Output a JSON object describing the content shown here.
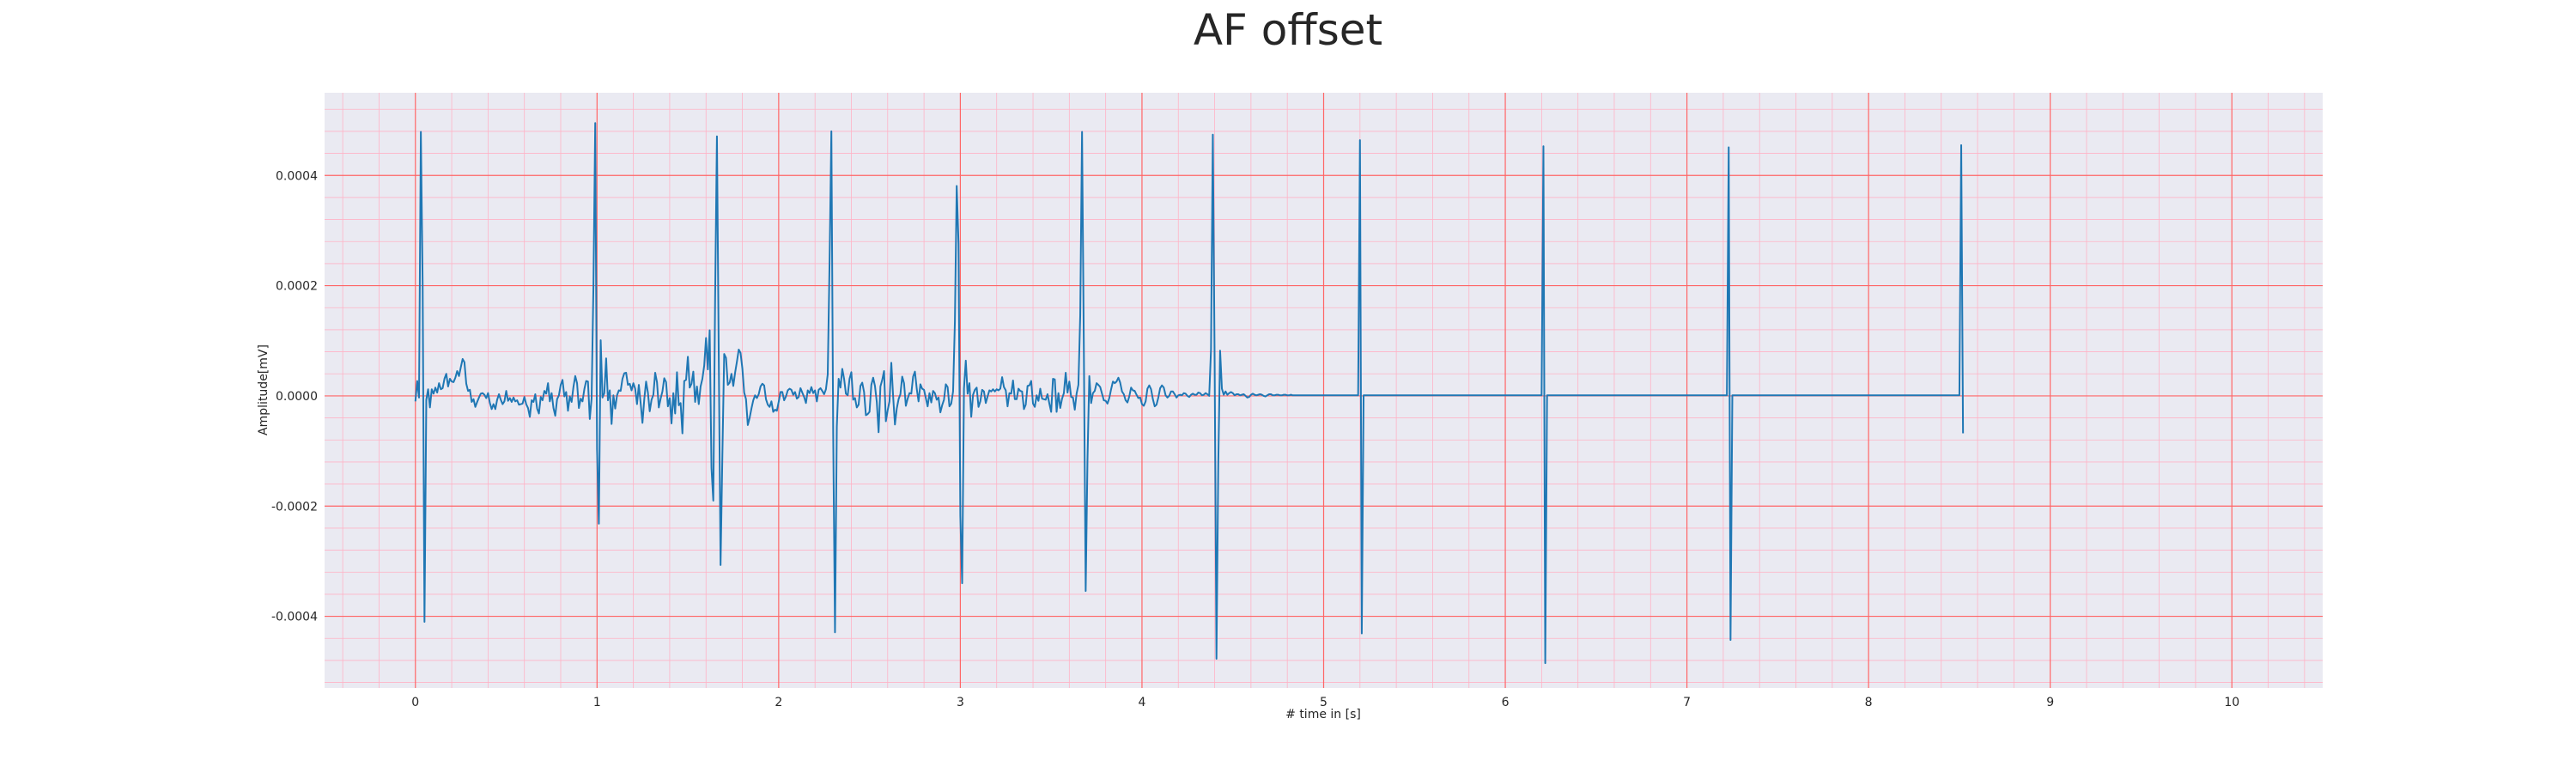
{
  "chart_data": {
    "type": "line",
    "title": "AF offset",
    "xlabel": "# time in [s]",
    "ylabel": "Amplitude[mV]",
    "xlim": [
      -0.5,
      10.5
    ],
    "ylim": [
      -0.00053,
      0.00055
    ],
    "xticks": [
      0,
      1,
      2,
      3,
      4,
      5,
      6,
      7,
      8,
      9,
      10
    ],
    "xtick_labels": [
      "0",
      "1",
      "2",
      "3",
      "4",
      "5",
      "6",
      "7",
      "8",
      "9",
      "10"
    ],
    "yticks": [
      -0.0004,
      -0.0002,
      0.0,
      0.0002,
      0.0004
    ],
    "ytick_labels": [
      "-0.0004",
      "-0.0002",
      "0.0000",
      "0.0002",
      "0.0004"
    ],
    "grid": "on",
    "colors": {
      "line": "#1f77b4",
      "plot_background": "#eaeaf2",
      "major_grid": "#ff6666",
      "minor_grid": "#ffb3c6",
      "text": "#262626"
    },
    "series": [
      {
        "sample_rate_hz": 100,
        "x_start": 0.0,
        "values": [
          -1e-05,
          2.7e-05,
          -3e-06,
          0.000479,
          0.000201,
          -0.00041,
          -7e-06,
          1.2e-05,
          -2.1e-05,
          1.2e-05,
          4e-06,
          1.5e-05,
          6e-06,
          2.3e-05,
          1.2e-05,
          1.4e-05,
          3.1e-05,
          4e-05,
          1.7e-05,
          3.1e-05,
          2.6e-05,
          2.5e-05,
          3.3e-05,
          4.5e-05,
          3.6e-05,
          5.2e-05,
          6.7e-05,
          6.1e-05,
          2.2e-05,
          9e-06,
          1.1e-05,
          -1.1e-05,
          -6e-06,
          -2e-05,
          -1.1e-05,
          -3e-06,
          4e-06,
          5e-06,
          2e-06,
          -4e-06,
          5e-06,
          -1.3e-05,
          -2.4e-05,
          -1.5e-05,
          -2.4e-05,
          -7e-06,
          3e-06,
          -7e-06,
          -1.5e-05,
          -1e-05,
          9e-06,
          -9e-06,
          -4e-06,
          -1.1e-05,
          -3e-06,
          -1e-05,
          -8e-06,
          -1.6e-05,
          -1.5e-05,
          -1.4e-05,
          -2e-06,
          -1.5e-05,
          -2.2e-05,
          -3.8e-05,
          -8e-06,
          -1.1e-05,
          3e-06,
          -2.3e-05,
          -3.2e-05,
          -2e-06,
          -8e-06,
          9e-06,
          4e-06,
          2.3e-05,
          -1e-05,
          5e-06,
          -2.2e-05,
          -3.6e-05,
          -6e-06,
          1e-06,
          2e-05,
          2.9e-05,
          -1e-06,
          7e-06,
          -2.7e-05,
          -1e-06,
          -1.1e-05,
          1.6e-05,
          3.6e-05,
          2.3e-05,
          -2.2e-05,
          -5e-06,
          -1e-05,
          1.2e-05,
          2.7e-05,
          2.6e-05,
          -4.2e-05,
          -5e-06,
          0.000197,
          0.000495,
          -9.7e-05,
          -0.000232,
          0.000101,
          -3e-06,
          5e-06,
          6.8e-05,
          -8e-06,
          1e-05,
          -5.1e-05,
          1e-06,
          -2.3e-05,
          1e-06,
          1e-05,
          9e-06,
          3.1e-05,
          4.1e-05,
          4.2e-05,
          2e-05,
          2.2e-05,
          1e-05,
          2.3e-05,
          1.3e-05,
          -1.5e-05,
          2e-05,
          -1.3e-05,
          -4.9e-05,
          -6e-06,
          2.6e-05,
          6e-06,
          -2.8e-05,
          -7e-06,
          2e-06,
          4.2e-05,
          2.5e-05,
          -2.1e-05,
          -5e-06,
          8e-06,
          3.2e-05,
          2.5e-05,
          -1.9e-05,
          -4e-06,
          -5e-05,
          5e-06,
          -3.2e-05,
          4.3e-05,
          -1.7e-05,
          -1.3e-05,
          -6.8e-05,
          2.7e-05,
          2.9e-05,
          7.1e-05,
          1.5e-05,
          2.2e-05,
          4.4e-05,
          -1.1e-05,
          1.7e-05,
          -1.5e-05,
          1.7e-05,
          3.1e-05,
          5.5e-05,
          0.000105,
          4.8e-05,
          0.000119,
          -0.000131,
          -0.00019,
          0.000177,
          0.000471,
          7.5e-05,
          -0.000307,
          -0.000107,
          7.6e-05,
          6.9e-05,
          2e-05,
          2.4e-05,
          4e-05,
          1.8e-05,
          4.2e-05,
          6.2e-05,
          8.4e-05,
          7.8e-05,
          5e-05,
          6e-06,
          -6e-06,
          -5.3e-05,
          -4e-05,
          -2.3e-05,
          -8e-06,
          1e-06,
          -4e-06,
          3e-06,
          1.7e-05,
          2.2e-05,
          1.9e-05,
          -6e-06,
          -1.6e-05,
          -2e-05,
          -1e-05,
          -2.9e-05,
          -2.5e-05,
          -2.7e-05,
          -1.1e-05,
          7e-06,
          7e-06,
          -8e-06,
          -1e-06,
          1e-05,
          1.3e-05,
          1.1e-05,
          2e-06,
          7e-06,
          -5e-06,
          -2e-06,
          1.4e-05,
          6e-06,
          -2e-06,
          -1.3e-05,
          1e-05,
          5e-06,
          1.6e-05,
          5e-06,
          1e-05,
          -1e-05,
          1.1e-05,
          1.4e-05,
          9e-06,
          3e-06,
          1.2e-05,
          3.9e-05,
          0.000242,
          0.00048,
          -6.8e-05,
          -0.000429,
          -5.6e-05,
          3.1e-05,
          1.5e-05,
          4.9e-05,
          3.1e-05,
          4e-06,
          1e-06,
          3.1e-05,
          4.3e-05,
          -7e-06,
          -4e-06,
          -2.1e-05,
          -1.6e-05,
          1.8e-05,
          2.4e-05,
          7e-06,
          -3.5e-05,
          -3.3e-05,
          -2.9e-05,
          2e-05,
          3.3e-05,
          1.8e-05,
          -1.1e-05,
          -6.6e-05,
          1.7e-05,
          2.9e-05,
          4.5e-05,
          -4.6e-05,
          -2.6e-05,
          -1e-05,
          6e-05,
          -1e-06,
          -5.2e-05,
          -2.3e-05,
          -6e-06,
          3e-06,
          3.5e-05,
          2.3e-05,
          -1.8e-05,
          -5e-06,
          5e-06,
          4e-06,
          3.5e-05,
          4.4e-05,
          1.3e-05,
          -1e-05,
          2.1e-05,
          1.3e-05,
          1.1e-05,
          -4e-06,
          -1.9e-05,
          5e-06,
          -1.2e-05,
          9e-06,
          5e-06,
          -7e-06,
          -3e-06,
          -3e-05,
          -1.7e-05,
          -7e-06,
          2.1e-05,
          1.6e-05,
          -1.9e-05,
          -1.4e-05,
          8e-06,
          0.000134,
          0.000381,
          0.000276,
          -0.000218,
          -0.00034,
          1.3e-05,
          6.4e-05,
          4e-06,
          2.3e-05,
          -3.8e-05,
          2e-06,
          1.1e-05,
          1.5e-05,
          -2e-05,
          -1e-05,
          1.1e-05,
          8e-06,
          -1.3e-05,
          -1e-06,
          1e-05,
          8e-06,
          1.2e-05,
          8e-06,
          1.2e-05,
          1e-05,
          1.3e-05,
          3.4e-05,
          1.6e-05,
          1e-05,
          -1.9e-05,
          5e-06,
          4e-06,
          2.8e-05,
          -6e-06,
          -6e-06,
          1.3e-05,
          9e-06,
          8e-06,
          -2.4e-05,
          -1.6e-05,
          1.8e-05,
          1.9e-05,
          2.7e-05,
          -1.4e-05,
          -2e-05,
          1e-06,
          -9e-06,
          1.3e-05,
          -5e-06,
          -6e-06,
          -7e-06,
          3e-06,
          -1.4e-05,
          -2.9e-05,
          3.1e-05,
          3e-05,
          -2.9e-05,
          5e-06,
          -2.2e-05,
          -5e-06,
          5e-06,
          4.2e-05,
          6e-06,
          2.6e-05,
          -2e-06,
          -3e-06,
          -2.5e-05,
          4e-06,
          2e-05,
          0.000146,
          0.000479,
          8.2e-05,
          -0.000354,
          -0.000115,
          3.6e-05,
          -1.3e-05,
          5e-06,
          9e-06,
          2.3e-05,
          2e-05,
          1.6e-05,
          4e-06,
          -8e-06,
          -9e-06,
          -1.4e-05,
          -4e-06,
          1.2e-05,
          2.6e-05,
          2.3e-05,
          2.6e-05,
          3.3e-05,
          2.4e-05,
          8e-06,
          3e-06,
          -8e-06,
          -1.2e-05,
          -1e-06,
          1.5e-05,
          1e-05,
          9e-06,
          2e-06,
          -4e-06,
          -3e-06,
          -1.5e-05,
          -1.8e-05,
          -1e-05,
          1.3e-05,
          1.9e-05,
          1.2e-05,
          -6e-06,
          -1.9e-05,
          -1.6e-05,
          -3e-06,
          1.4e-05,
          1.9e-05,
          1.5e-05,
          1e-06,
          -3e-06,
          0.0,
          8e-06,
          8e-06,
          3e-06,
          -3e-06,
          1e-06,
          2e-06,
          1e-06,
          5e-06,
          4e-06,
          0.0,
          -2e-06,
          2e-06,
          4e-06,
          2e-06,
          2e-06,
          6e-06,
          5e-06,
          1e-06,
          2e-06,
          5e-06,
          3e-06,
          0.0,
          8.4e-05,
          0.000474,
          6.1e-05,
          -0.000477,
          -0.000125,
          8.2e-05,
          1.3e-05,
          2e-06,
          8e-06,
          2e-06,
          5e-06,
          7e-06,
          5e-06,
          1e-06,
          3e-06,
          3e-06,
          1e-06,
          2e-06,
          3e-06,
          0.0,
          -3e-06,
          -2e-06,
          2e-06,
          4e-06,
          2e-06,
          1e-06,
          2e-06,
          3e-06,
          2e-06,
          0.0,
          -1e-06,
          1e-06,
          3e-06,
          3e-06,
          1e-06,
          1e-06,
          2e-06,
          2e-06,
          1e-06,
          1e-06,
          2e-06,
          2e-06,
          1e-06,
          1e-06,
          2e-06,
          1e-06,
          1e-06,
          1e-06,
          1e-06,
          1e-06,
          1e-06,
          1e-06,
          1e-06,
          1e-06,
          1e-06,
          1e-06,
          1e-06,
          1e-06,
          1e-06,
          1e-06,
          1e-06,
          1e-06,
          1e-06,
          1e-06,
          1e-06,
          1e-06,
          1e-06,
          1e-06,
          1e-06,
          1e-06,
          1e-06,
          1e-06,
          1e-06,
          1e-06,
          1e-06,
          1e-06,
          1e-06,
          1e-06,
          1e-06,
          1e-06,
          1e-06,
          1e-06,
          0.000464,
          -0.000431,
          1e-06,
          1e-06,
          1e-06,
          1e-06,
          1e-06,
          1e-06,
          1e-06,
          1e-06,
          1e-06,
          1e-06,
          1e-06,
          1e-06,
          1e-06,
          1e-06,
          1e-06,
          1e-06,
          1e-06,
          1e-06,
          1e-06,
          1e-06,
          1e-06,
          1e-06,
          1e-06,
          1e-06,
          1e-06,
          1e-06,
          1e-06,
          1e-06,
          1e-06,
          1e-06,
          1e-06,
          1e-06,
          1e-06,
          1e-06,
          1e-06,
          1e-06,
          1e-06,
          1e-06,
          1e-06,
          1e-06,
          1e-06,
          1e-06,
          1e-06,
          1e-06,
          1e-06,
          1e-06,
          1e-06,
          1e-06,
          1e-06,
          1e-06,
          1e-06,
          1e-06,
          1e-06,
          1e-06,
          1e-06,
          1e-06,
          1e-06,
          1e-06,
          1e-06,
          1e-06,
          1e-06,
          1e-06,
          1e-06,
          1e-06,
          1e-06,
          1e-06,
          1e-06,
          1e-06,
          1e-06,
          1e-06,
          1e-06,
          1e-06,
          1e-06,
          1e-06,
          1e-06,
          1e-06,
          1e-06,
          1e-06,
          1e-06,
          1e-06,
          1e-06,
          1e-06,
          1e-06,
          1e-06,
          1e-06,
          1e-06,
          1e-06,
          1e-06,
          1e-06,
          1e-06,
          1e-06,
          1e-06,
          1e-06,
          1e-06,
          1e-06,
          1e-06,
          1e-06,
          1e-06,
          1e-06,
          0.000453,
          -0.000485,
          1e-06,
          1e-06,
          1e-06,
          1e-06,
          1e-06,
          1e-06,
          1e-06,
          1e-06,
          1e-06,
          1e-06,
          1e-06,
          1e-06,
          1e-06,
          1e-06,
          1e-06,
          1e-06,
          1e-06,
          1e-06,
          1e-06,
          1e-06,
          1e-06,
          1e-06,
          1e-06,
          1e-06,
          1e-06,
          1e-06,
          1e-06,
          1e-06,
          1e-06,
          1e-06,
          1e-06,
          1e-06,
          1e-06,
          1e-06,
          1e-06,
          1e-06,
          1e-06,
          1e-06,
          1e-06,
          1e-06,
          1e-06,
          1e-06,
          1e-06,
          1e-06,
          1e-06,
          1e-06,
          1e-06,
          1e-06,
          1e-06,
          1e-06,
          1e-06,
          1e-06,
          1e-06,
          1e-06,
          1e-06,
          1e-06,
          1e-06,
          1e-06,
          1e-06,
          1e-06,
          1e-06,
          1e-06,
          1e-06,
          1e-06,
          1e-06,
          1e-06,
          1e-06,
          1e-06,
          1e-06,
          1e-06,
          1e-06,
          1e-06,
          1e-06,
          1e-06,
          1e-06,
          1e-06,
          1e-06,
          1e-06,
          1e-06,
          1e-06,
          1e-06,
          1e-06,
          1e-06,
          1e-06,
          1e-06,
          1e-06,
          1e-06,
          1e-06,
          1e-06,
          1e-06,
          1e-06,
          1e-06,
          1e-06,
          1e-06,
          1e-06,
          1e-06,
          1e-06,
          1e-06,
          1e-06,
          1e-06,
          0.000451,
          -0.000443,
          1e-06,
          1e-06,
          1e-06,
          1e-06,
          1e-06,
          1e-06,
          1e-06,
          1e-06,
          1e-06,
          1e-06,
          1e-06,
          1e-06,
          1e-06,
          1e-06,
          1e-06,
          1e-06,
          1e-06,
          1e-06,
          1e-06,
          1e-06,
          1e-06,
          1e-06,
          1e-06,
          1e-06,
          1e-06,
          1e-06,
          1e-06,
          1e-06,
          1e-06,
          1e-06,
          1e-06,
          1e-06,
          1e-06,
          1e-06,
          1e-06,
          1e-06,
          1e-06,
          1e-06,
          1e-06,
          1e-06,
          1e-06,
          1e-06,
          1e-06,
          1e-06,
          1e-06,
          1e-06,
          1e-06,
          1e-06,
          1e-06,
          1e-06,
          1e-06,
          1e-06,
          1e-06,
          1e-06,
          1e-06,
          1e-06,
          1e-06,
          1e-06,
          1e-06,
          1e-06,
          1e-06,
          1e-06,
          1e-06,
          1e-06,
          1e-06,
          1e-06,
          1e-06,
          1e-06,
          1e-06,
          1e-06,
          1e-06,
          1e-06,
          1e-06,
          1e-06,
          1e-06,
          1e-06,
          1e-06,
          1e-06,
          1e-06,
          1e-06,
          1e-06,
          1e-06,
          1e-06,
          1e-06,
          1e-06,
          1e-06,
          1e-06,
          1e-06,
          1e-06,
          1e-06,
          1e-06,
          1e-06,
          1e-06,
          1e-06,
          1e-06,
          1e-06,
          1e-06,
          1e-06,
          1e-06,
          1e-06,
          1e-06,
          1e-06,
          1e-06,
          1e-06,
          1e-06,
          1e-06,
          1e-06,
          1e-06,
          1e-06,
          1e-06,
          1e-06,
          1e-06,
          1e-06,
          1e-06,
          1e-06,
          1e-06,
          1e-06,
          1e-06,
          1e-06,
          1e-06,
          1e-06,
          1e-06,
          1e-06,
          1e-06,
          1e-06,
          1e-06,
          0.000455,
          -6.8e-05
        ]
      }
    ]
  }
}
